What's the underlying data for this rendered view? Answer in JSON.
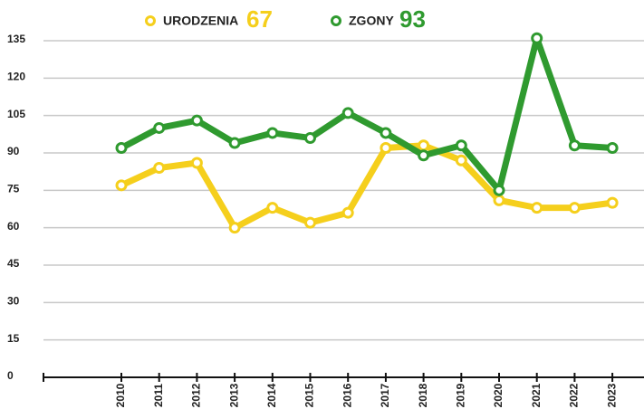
{
  "chart_data": {
    "type": "line",
    "categories": [
      "2010",
      "2011",
      "2012",
      "2013",
      "2014",
      "2015",
      "2016",
      "2017",
      "2018",
      "2019",
      "2020",
      "2021",
      "2022",
      "2023"
    ],
    "series": [
      {
        "name": "URODZENIA",
        "total": 67,
        "color": "#f5cf1c",
        "values": [
          77,
          84,
          86,
          60,
          68,
          62,
          66,
          92,
          93,
          87,
          71,
          68,
          68,
          70
        ]
      },
      {
        "name": "ZGONY",
        "total": 93,
        "color": "#2f9a2f",
        "values": [
          92,
          100,
          103,
          94,
          98,
          96,
          106,
          98,
          89,
          93,
          75,
          136,
          93,
          92
        ]
      }
    ],
    "ylim": [
      0,
      135
    ],
    "yticks": [
      0,
      15,
      30,
      45,
      60,
      75,
      90,
      105,
      120,
      135
    ],
    "grid": true
  }
}
